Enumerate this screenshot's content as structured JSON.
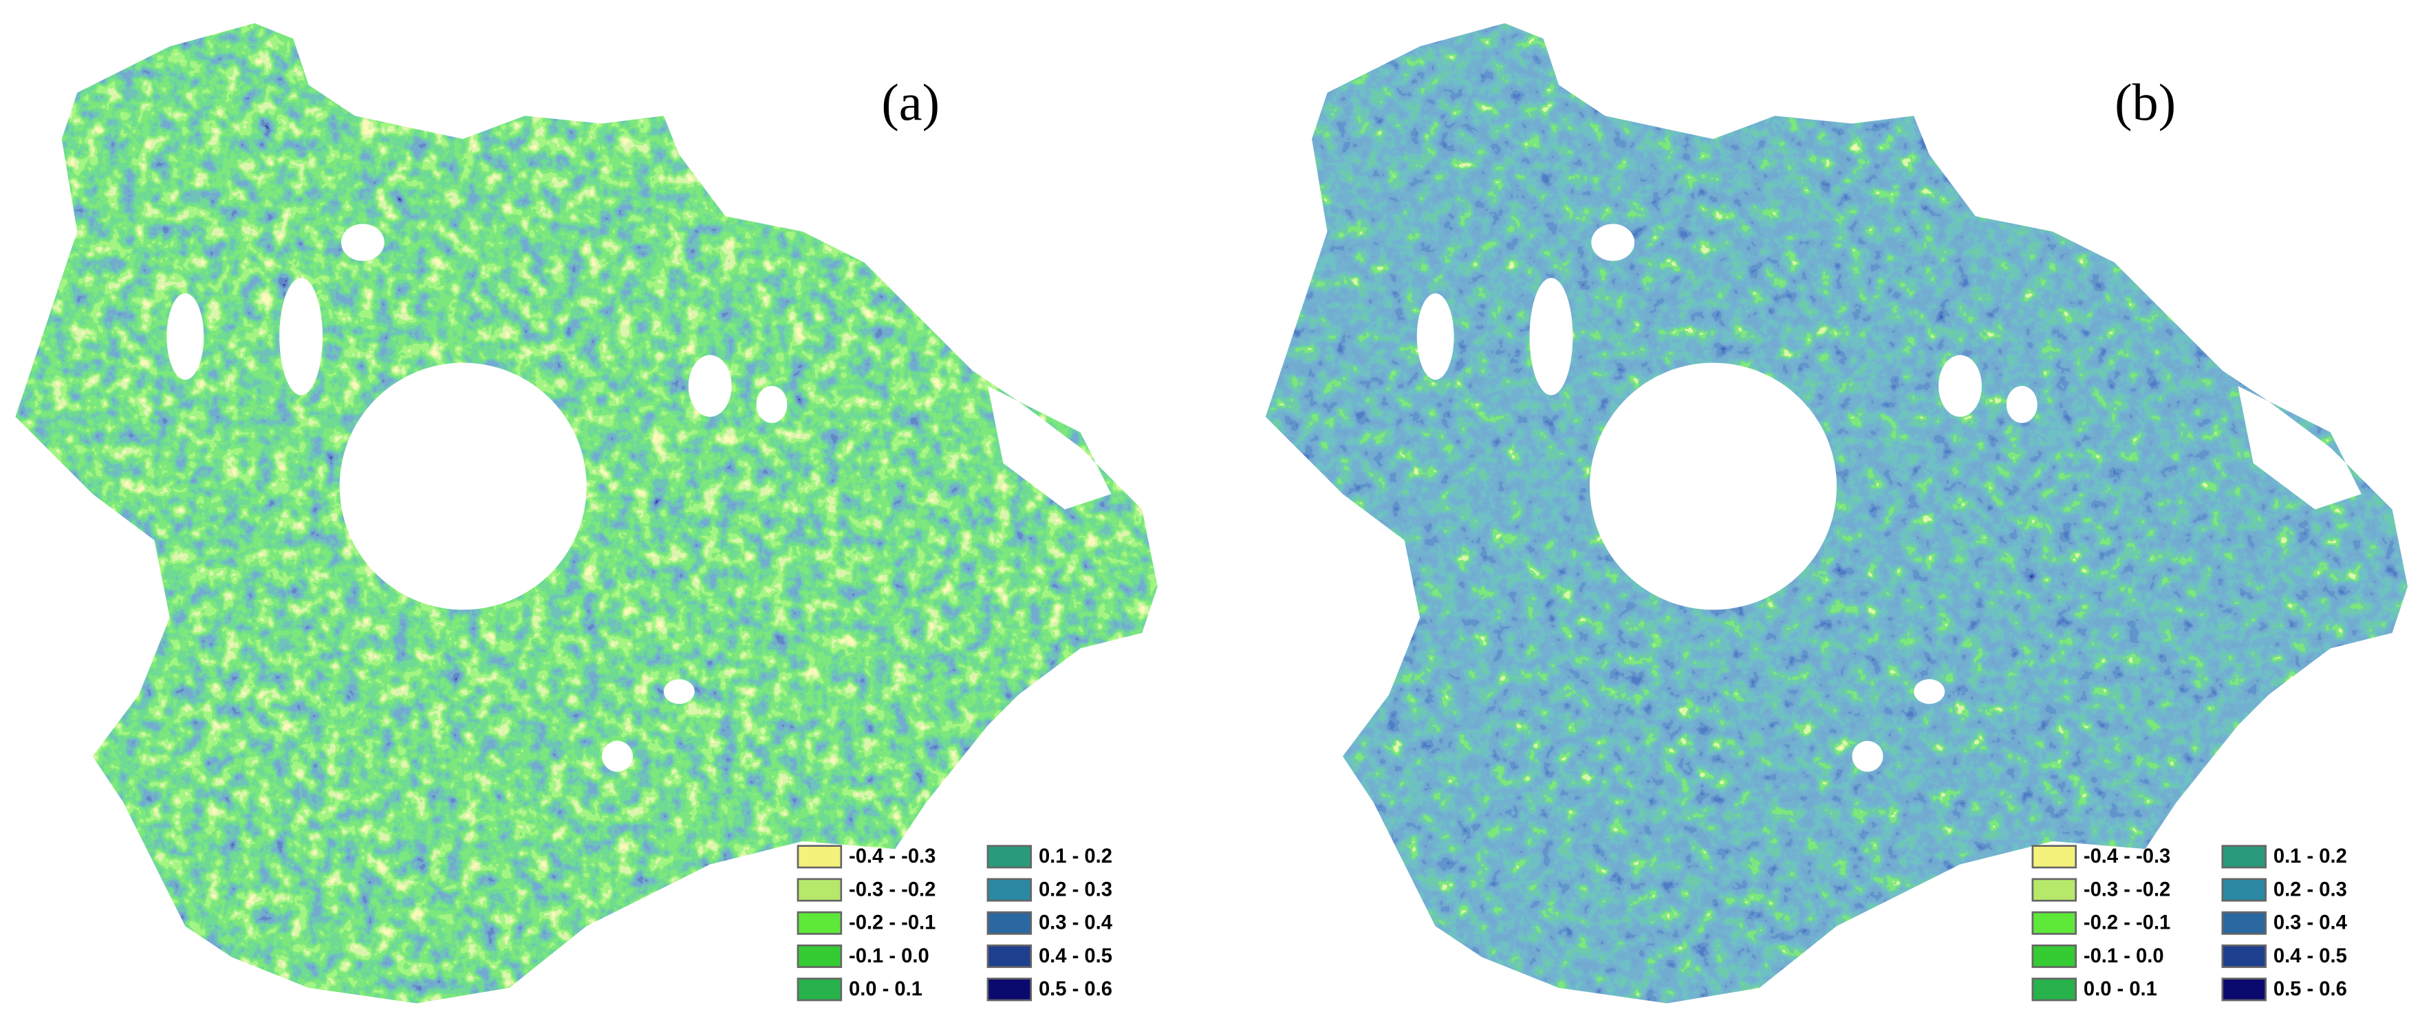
{
  "panels": [
    {
      "label": "(a)"
    },
    {
      "label": "(b)"
    }
  ],
  "legend": [
    {
      "label": "-0.4 - -0.3",
      "color": "#f4f27a"
    },
    {
      "label": "-0.3 - -0.2",
      "color": "#b6e86a"
    },
    {
      "label": "-0.2 - -0.1",
      "color": "#5ee83a"
    },
    {
      "label": "-0.1 - 0.0",
      "color": "#34cc32"
    },
    {
      "label": "0.0 - 0.1",
      "color": "#28b24c"
    },
    {
      "label": "0.1 - 0.2",
      "color": "#2a9a7c"
    },
    {
      "label": "0.2 - 0.3",
      "color": "#2a88a2"
    },
    {
      "label": "0.3 - 0.4",
      "color": "#2b67a0"
    },
    {
      "label": "0.4 - 0.5",
      "color": "#1f3f8f"
    },
    {
      "label": "0.5 - 0.6",
      "color": "#0a0a6e"
    }
  ]
}
